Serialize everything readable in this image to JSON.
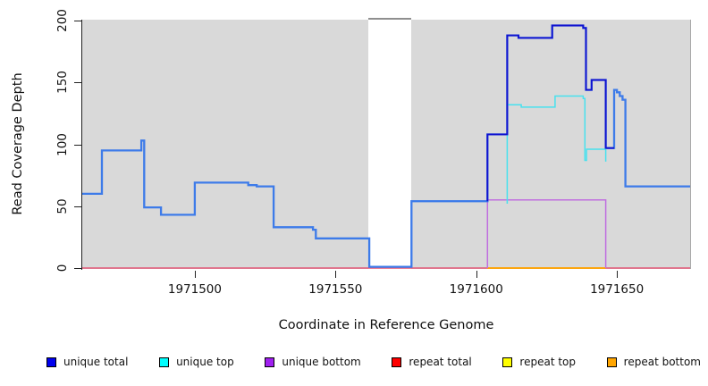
{
  "figure": {
    "y_axis_title": "Read Coverage Depth",
    "x_axis_title": "Coordinate in Reference Genome"
  },
  "legend": {
    "items": [
      {
        "label": "unique total",
        "color": "#0000ee"
      },
      {
        "label": "unique top",
        "color": "#00ffff"
      },
      {
        "label": "unique bottom",
        "color": "#a020f0"
      },
      {
        "label": "repeat total",
        "color": "#ff0000"
      },
      {
        "label": "repeat top",
        "color": "#ffff00"
      },
      {
        "label": "repeat bottom",
        "color": "#ffa500"
      }
    ]
  },
  "chart_data": {
    "type": "line",
    "style": "step",
    "title": "",
    "xlabel": "Coordinate in Reference Genome",
    "ylabel": "Read Coverage Depth",
    "xlim": [
      1971460,
      1971676
    ],
    "ylim": [
      0,
      200
    ],
    "x_ticks": [
      1971500,
      1971550,
      1971600,
      1971650
    ],
    "y_ticks": [
      0,
      50,
      100,
      150,
      200
    ],
    "plot_background": "#d9d9d9",
    "grid": false,
    "legend_position": "bottom",
    "masked_region": {
      "x_start": 1971561.7,
      "x_end": 1971577,
      "fill": "#ffffff",
      "cap_color": "#8f8f8f"
    },
    "series": [
      {
        "name": "repeat total",
        "color": "#e25575",
        "width": 1.4,
        "points": [
          [
            1971460,
            0
          ],
          [
            1971676,
            0
          ]
        ]
      },
      {
        "name": "repeat top",
        "color": "#ffff00",
        "width": 1.2,
        "points": [
          [
            1971604,
            0
          ],
          [
            1971646,
            0
          ]
        ]
      },
      {
        "name": "repeat bottom",
        "color": "#ffa500",
        "width": 1.8,
        "points": [
          [
            1971604,
            0
          ],
          [
            1971646,
            0
          ]
        ]
      },
      {
        "name": "unique bottom",
        "color": "#c06ee0",
        "width": 1.5,
        "points": [
          [
            1971604,
            0
          ],
          [
            1971604,
            55
          ],
          [
            1971646,
            55
          ],
          [
            1971646,
            0
          ]
        ]
      },
      {
        "name": "total",
        "color": "#3d7be9",
        "width": 2.3,
        "points": [
          [
            1971460,
            60
          ],
          [
            1971467,
            95
          ],
          [
            1971481,
            103
          ],
          [
            1971482,
            49
          ],
          [
            1971488,
            43
          ],
          [
            1971500,
            69
          ],
          [
            1971519,
            67
          ],
          [
            1971522,
            66
          ],
          [
            1971528,
            33
          ],
          [
            1971542,
            31
          ],
          [
            1971543,
            24
          ],
          [
            1971562,
            1
          ],
          [
            1971577,
            54
          ],
          [
            1971604,
            108
          ],
          [
            1971611,
            188
          ],
          [
            1971615,
            186
          ],
          [
            1971627,
            196
          ],
          [
            1971638,
            194
          ],
          [
            1971639,
            144
          ],
          [
            1971641,
            152
          ],
          [
            1971646,
            97
          ],
          [
            1971649,
            144
          ],
          [
            1971650,
            142
          ],
          [
            1971651,
            139
          ],
          [
            1971652,
            136
          ],
          [
            1971653,
            66
          ],
          [
            1971676,
            66
          ]
        ]
      },
      {
        "name": "unique top",
        "color": "#48e1ee",
        "width": 1.5,
        "points": [
          [
            1971611,
            52
          ],
          [
            1971611,
            132
          ],
          [
            1971616,
            130
          ],
          [
            1971628,
            139
          ],
          [
            1971638,
            137
          ],
          [
            1971638.6,
            87
          ],
          [
            1971639.2,
            96
          ],
          [
            1971646,
            96
          ],
          [
            1971646,
            86
          ]
        ]
      },
      {
        "name": "unique total",
        "color": "#1111cf",
        "width": 1.9,
        "points": [
          [
            1971604,
            54
          ],
          [
            1971604,
            108
          ],
          [
            1971611,
            188
          ],
          [
            1971615,
            186
          ],
          [
            1971627,
            196
          ],
          [
            1971638,
            194
          ],
          [
            1971639,
            144
          ],
          [
            1971641,
            152
          ],
          [
            1971646,
            97
          ],
          [
            1971649,
            97
          ]
        ]
      }
    ]
  }
}
